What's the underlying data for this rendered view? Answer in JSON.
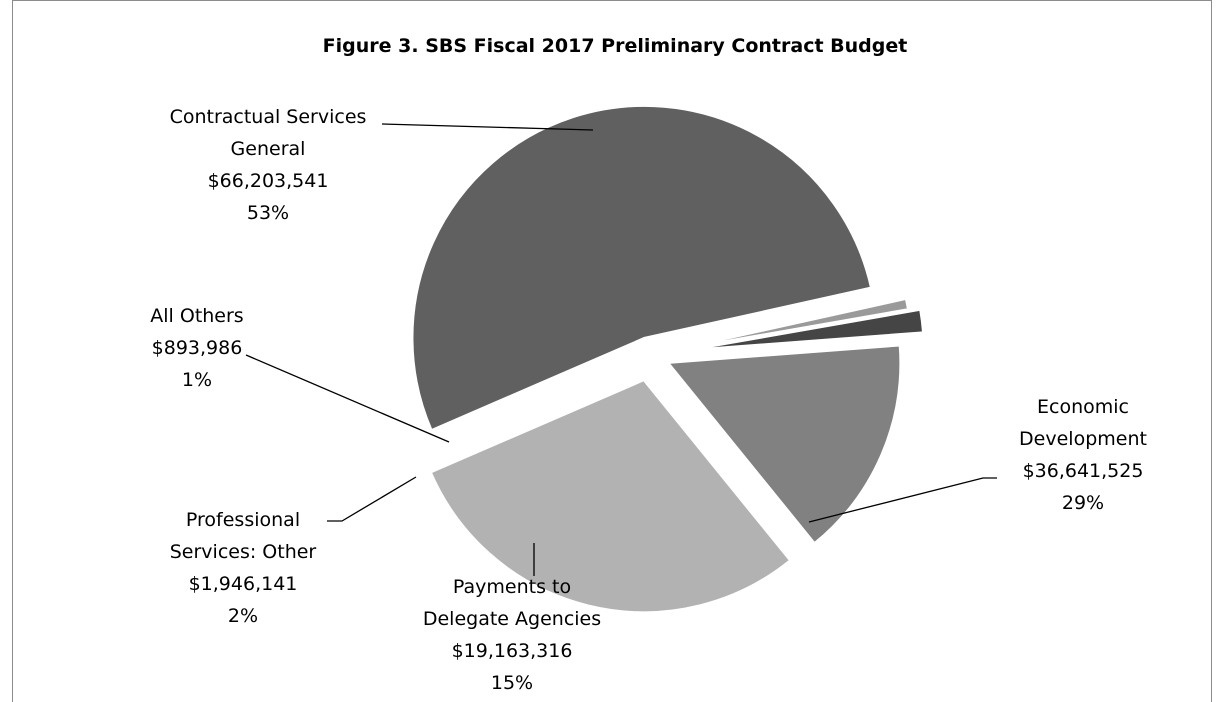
{
  "chart_data": {
    "type": "pie",
    "title": "Figure 3. SBS Fiscal 2017 Preliminary Contract Budget",
    "exploded": true,
    "slices": [
      {
        "name": "Contractual Services General",
        "label_lines": [
          "Contractual Services",
          "General"
        ],
        "amount": "$66,203,541",
        "value": 66203541,
        "percent": "53%",
        "color": "#606060"
      },
      {
        "name": "Economic Development",
        "label_lines": [
          "Economic",
          "Development"
        ],
        "amount": "$36,641,525",
        "value": 36641525,
        "percent": "29%",
        "color": "#b2b2b2"
      },
      {
        "name": "Payments to Delegate Agencies",
        "label_lines": [
          "Payments to",
          "Delegate Agencies"
        ],
        "amount": "$19,163,316",
        "value": 19163316,
        "percent": "15%",
        "color": "#818181"
      },
      {
        "name": "Professional Services: Other",
        "label_lines": [
          "Professional",
          "Services: Other"
        ],
        "amount": "$1,946,141",
        "value": 1946141,
        "percent": "2%",
        "color": "#454545"
      },
      {
        "name": "All Others",
        "label_lines": [
          "All Others"
        ],
        "amount": "$893,986",
        "value": 893986,
        "percent": "1%",
        "color": "#9a9a9a"
      }
    ]
  }
}
